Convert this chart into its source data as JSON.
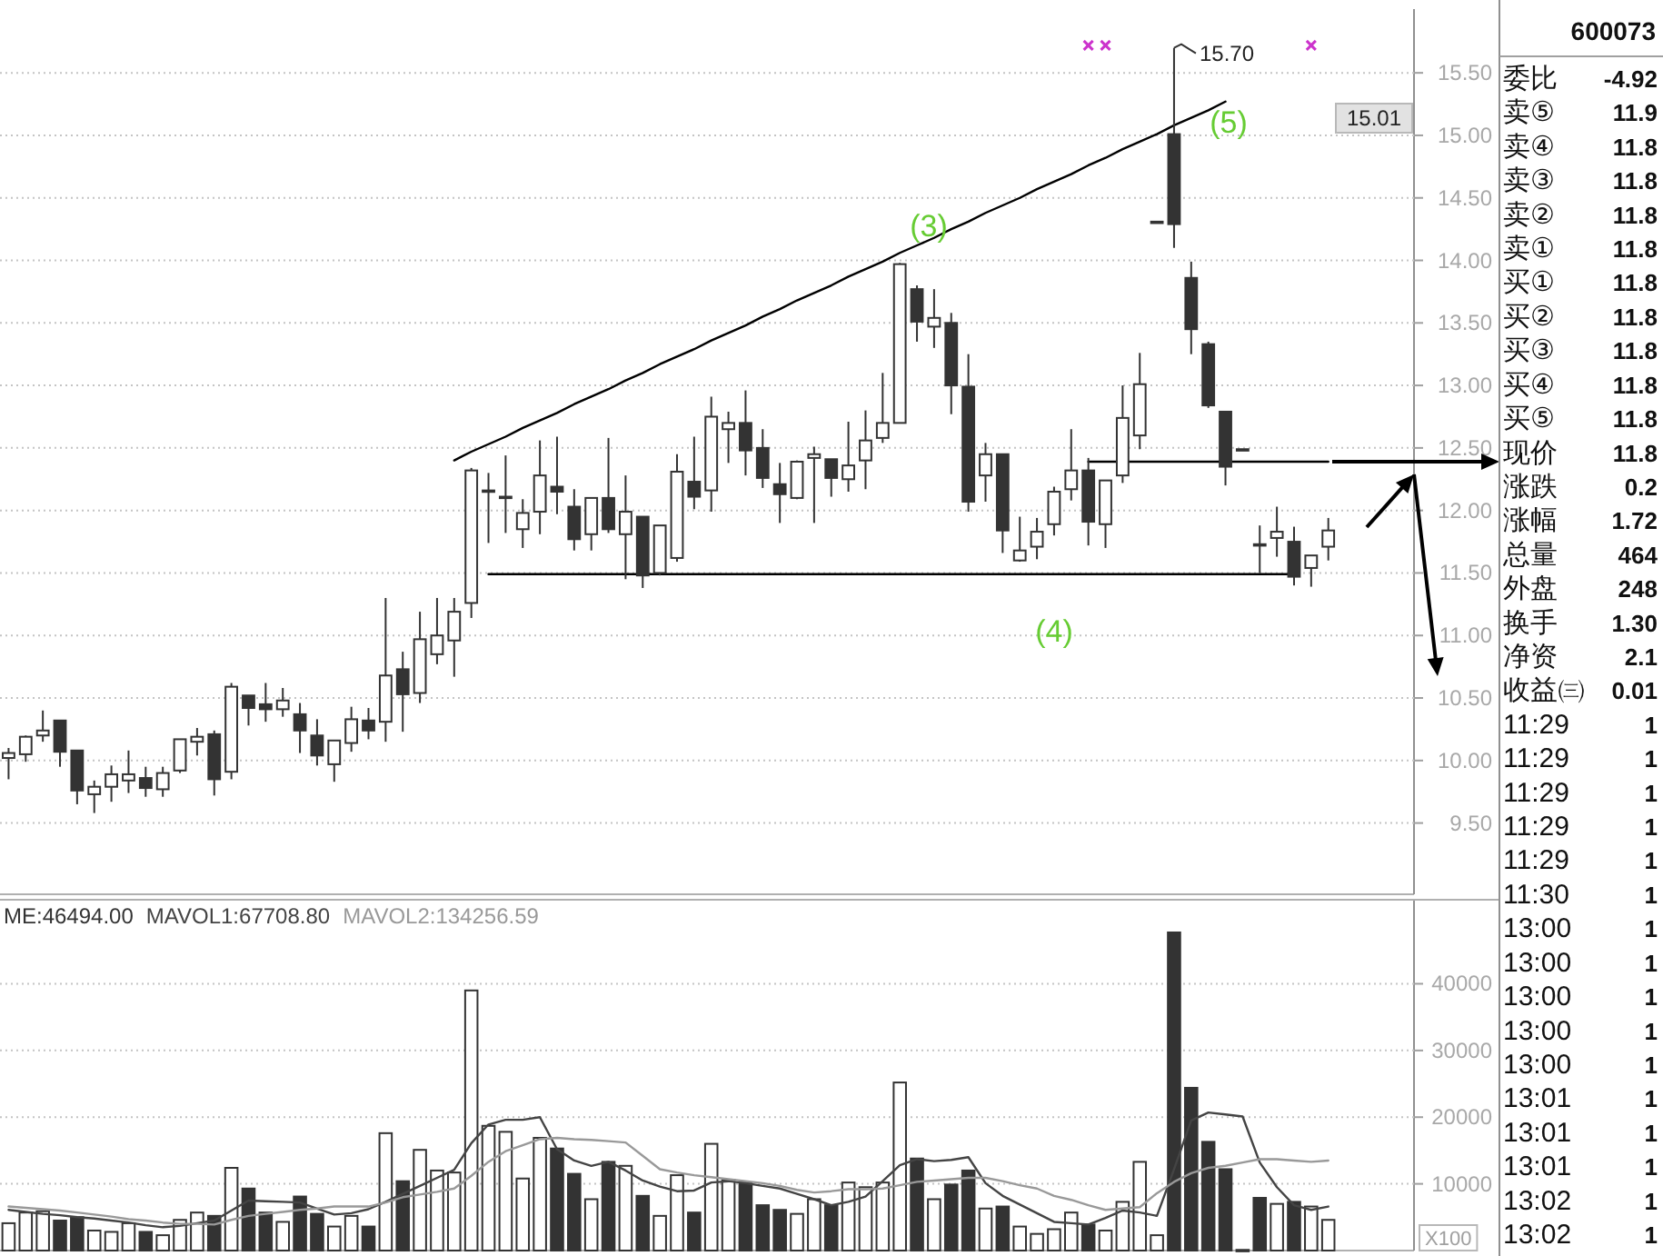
{
  "chart_data": [
    {
      "type": "candlestick",
      "categories": [
        null,
        null,
        null,
        null,
        null,
        null,
        null,
        null,
        null,
        null,
        null,
        null,
        null,
        null,
        null,
        null,
        null,
        null,
        null,
        null,
        null,
        null,
        null,
        null,
        null,
        null,
        null,
        null,
        null,
        null,
        null,
        null,
        null,
        null,
        null,
        null,
        null,
        null,
        null,
        null,
        null,
        null,
        null,
        null,
        null,
        null,
        null,
        null,
        null,
        null,
        null,
        null,
        null,
        null,
        null,
        null,
        null,
        null,
        null,
        null,
        null,
        null,
        null,
        null,
        null,
        null,
        null,
        null,
        null,
        null,
        null,
        null,
        null,
        null,
        null,
        null,
        null,
        null
      ],
      "color": "#333333",
      "ohlc": [
        [
          10.02,
          10.1,
          9.85,
          10.06
        ],
        [
          10.05,
          10.2,
          9.99,
          10.19
        ],
        [
          10.2,
          10.4,
          10.15,
          10.24
        ],
        [
          10.32,
          10.32,
          9.95,
          10.07
        ],
        [
          10.08,
          10.08,
          9.65,
          9.76
        ],
        [
          9.73,
          9.84,
          9.58,
          9.79
        ],
        [
          9.79,
          9.96,
          9.67,
          9.89
        ],
        [
          9.84,
          10.08,
          9.74,
          9.89
        ],
        [
          9.86,
          9.95,
          9.71,
          9.78
        ],
        [
          9.77,
          9.95,
          9.71,
          9.9
        ],
        [
          9.92,
          10.17,
          9.9,
          10.17
        ],
        [
          10.15,
          10.26,
          10.04,
          10.19
        ],
        [
          10.21,
          10.24,
          9.72,
          9.85
        ],
        [
          9.91,
          10.62,
          9.85,
          10.59
        ],
        [
          10.52,
          10.52,
          10.28,
          10.42
        ],
        [
          10.45,
          10.62,
          10.31,
          10.41
        ],
        [
          10.41,
          10.58,
          10.35,
          10.48
        ],
        [
          10.37,
          10.46,
          10.06,
          10.24
        ],
        [
          10.2,
          10.33,
          9.96,
          10.04
        ],
        [
          9.97,
          10.16,
          9.83,
          10.16
        ],
        [
          10.14,
          10.43,
          10.07,
          10.33
        ],
        [
          10.32,
          10.42,
          10.17,
          10.24
        ],
        [
          10.31,
          11.3,
          10.15,
          10.68
        ],
        [
          10.73,
          10.87,
          10.23,
          10.53
        ],
        [
          10.54,
          11.19,
          10.46,
          10.97
        ],
        [
          10.85,
          11.3,
          10.77,
          11.0
        ],
        [
          10.96,
          11.3,
          10.67,
          11.19
        ],
        [
          11.26,
          12.34,
          11.14,
          12.32
        ],
        [
          12.15,
          12.3,
          11.74,
          12.16
        ],
        [
          12.1,
          12.44,
          11.82,
          12.11
        ],
        [
          11.85,
          12.09,
          11.7,
          11.98
        ],
        [
          11.99,
          12.56,
          11.81,
          12.28
        ],
        [
          12.19,
          12.59,
          11.97,
          12.15
        ],
        [
          12.03,
          12.17,
          11.68,
          11.77
        ],
        [
          11.81,
          12.1,
          11.68,
          12.1
        ],
        [
          12.1,
          12.58,
          11.82,
          11.85
        ],
        [
          11.81,
          12.28,
          11.45,
          11.99
        ],
        [
          11.95,
          11.95,
          11.38,
          11.48
        ],
        [
          11.5,
          11.88,
          11.48,
          11.88
        ],
        [
          11.62,
          12.45,
          11.59,
          12.31
        ],
        [
          12.23,
          12.59,
          12.01,
          12.11
        ],
        [
          12.16,
          12.91,
          11.99,
          12.75
        ],
        [
          12.65,
          12.79,
          12.38,
          12.7
        ],
        [
          12.7,
          12.96,
          12.28,
          12.48
        ],
        [
          12.5,
          12.65,
          12.18,
          12.26
        ],
        [
          12.21,
          12.38,
          11.9,
          12.13
        ],
        [
          12.1,
          12.4,
          12.09,
          12.39
        ],
        [
          12.42,
          12.51,
          11.9,
          12.45
        ],
        [
          12.41,
          12.41,
          12.11,
          12.26
        ],
        [
          12.25,
          12.71,
          12.15,
          12.36
        ],
        [
          12.4,
          12.8,
          12.17,
          12.56
        ],
        [
          12.58,
          13.1,
          12.54,
          12.7
        ],
        [
          12.7,
          13.98,
          12.7,
          13.97
        ],
        [
          13.77,
          13.8,
          13.35,
          13.51
        ],
        [
          13.47,
          13.77,
          13.3,
          13.54
        ],
        [
          13.5,
          13.58,
          12.77,
          13.0
        ],
        [
          12.99,
          13.25,
          11.99,
          12.07
        ],
        [
          12.28,
          12.54,
          12.07,
          12.45
        ],
        [
          12.45,
          12.45,
          11.66,
          11.84
        ],
        [
          11.6,
          11.95,
          11.59,
          11.68
        ],
        [
          11.71,
          11.94,
          11.61,
          11.83
        ],
        [
          11.89,
          12.19,
          11.8,
          12.15
        ],
        [
          12.17,
          12.65,
          12.08,
          12.32
        ],
        [
          12.32,
          12.42,
          11.72,
          11.91
        ],
        [
          11.89,
          12.24,
          11.7,
          12.24
        ],
        [
          12.28,
          13.0,
          12.22,
          12.74
        ],
        [
          12.6,
          13.26,
          12.49,
          13.01
        ],
        [
          14.31,
          14.31,
          14.31,
          14.31
        ],
        [
          15.01,
          15.7,
          14.1,
          14.29
        ],
        [
          13.86,
          13.99,
          13.25,
          13.45
        ],
        [
          13.33,
          13.35,
          12.82,
          12.84
        ],
        [
          12.79,
          12.79,
          12.2,
          12.35
        ],
        [
          12.49,
          12.49,
          12.49,
          12.49
        ],
        [
          11.73,
          11.88,
          11.5,
          11.72
        ],
        [
          11.78,
          12.03,
          11.63,
          11.83
        ],
        [
          11.75,
          11.87,
          11.4,
          11.47
        ],
        [
          11.54,
          11.64,
          11.39,
          11.64
        ],
        [
          11.71,
          11.94,
          11.6,
          11.84
        ]
      ],
      "value_labels": [
        null,
        null,
        null,
        null,
        null,
        null,
        null,
        null,
        null,
        null,
        null,
        null,
        null,
        null,
        null,
        null,
        null,
        null,
        null,
        null,
        null,
        null,
        null,
        null,
        null,
        null,
        null,
        null,
        null,
        null,
        null,
        null,
        null,
        null,
        null,
        null,
        null,
        null,
        null,
        null,
        null,
        null,
        null,
        null,
        null,
        null,
        null,
        null,
        null,
        null,
        null,
        null,
        null,
        null,
        null,
        null,
        null,
        null,
        null,
        null,
        null,
        null,
        null,
        null,
        null,
        null,
        null,
        null,
        "15.70",
        null,
        null,
        null,
        null,
        null,
        null,
        null,
        null,
        null
      ],
      "series": [
        {
          "type": "line",
          "color": "#000000",
          "values": [
            null,
            null,
            null,
            null,
            null,
            null,
            null,
            null,
            null,
            null,
            null,
            null,
            null,
            null,
            null,
            null,
            null,
            null,
            null,
            null,
            null,
            null,
            null,
            null,
            null,
            null,
            12.4,
            12.47,
            12.53,
            12.59,
            12.66,
            12.72,
            12.78,
            12.85,
            12.91,
            12.97,
            13.04,
            13.1,
            13.17,
            13.23,
            13.29,
            13.36,
            13.42,
            13.48,
            13.55,
            13.61,
            13.68,
            13.74,
            13.8,
            13.87,
            13.93,
            13.99,
            14.06,
            14.12,
            14.18,
            14.25,
            14.31,
            14.38,
            14.44,
            14.5,
            14.57,
            14.63,
            14.69,
            14.76,
            14.82,
            14.89,
            14.95,
            15.01,
            15.08,
            15.14,
            15.2,
            15.27,
            null,
            null,
            null,
            null,
            null,
            null
          ]
        },
        {
          "type": "line",
          "color": "#000000",
          "values": [
            null,
            null,
            null,
            null,
            null,
            null,
            null,
            null,
            null,
            null,
            null,
            null,
            null,
            null,
            null,
            null,
            null,
            null,
            null,
            null,
            null,
            null,
            null,
            null,
            null,
            null,
            null,
            null,
            11.49,
            11.49,
            11.49,
            11.49,
            11.49,
            11.49,
            11.49,
            11.49,
            11.49,
            11.49,
            11.49,
            11.49,
            11.49,
            11.49,
            11.49,
            11.49,
            11.49,
            11.49,
            11.49,
            11.49,
            11.49,
            11.49,
            11.49,
            11.49,
            11.49,
            11.49,
            11.49,
            11.49,
            11.49,
            11.49,
            11.49,
            11.49,
            11.49,
            11.49,
            11.49,
            11.49,
            11.49,
            11.49,
            11.49,
            11.49,
            11.49,
            11.49,
            11.49,
            11.49,
            11.49,
            11.49,
            11.49,
            11.49,
            null,
            null
          ]
        },
        {
          "type": "line",
          "color": "#000000",
          "values": [
            null,
            null,
            null,
            null,
            null,
            null,
            null,
            null,
            null,
            null,
            null,
            null,
            null,
            null,
            null,
            null,
            null,
            null,
            null,
            null,
            null,
            null,
            null,
            null,
            null,
            null,
            null,
            null,
            null,
            null,
            null,
            null,
            null,
            null,
            null,
            null,
            null,
            null,
            null,
            null,
            null,
            null,
            null,
            null,
            null,
            null,
            null,
            null,
            null,
            null,
            null,
            null,
            null,
            null,
            null,
            null,
            null,
            null,
            null,
            null,
            null,
            null,
            null,
            12.39,
            12.39,
            12.39,
            12.39,
            12.39,
            12.39,
            12.39,
            12.39,
            12.39,
            12.39,
            12.39,
            12.39,
            12.39,
            12.39,
            12.39
          ]
        },
        {
          "type": "scatter",
          "color": "#cc33cc",
          "marker": "cross",
          "values": [
            null,
            null,
            null,
            null,
            null,
            null,
            null,
            null,
            null,
            null,
            null,
            null,
            null,
            null,
            null,
            null,
            null,
            null,
            null,
            null,
            null,
            null,
            null,
            null,
            null,
            null,
            null,
            null,
            null,
            null,
            null,
            null,
            null,
            null,
            null,
            null,
            null,
            null,
            null,
            null,
            null,
            null,
            null,
            null,
            null,
            null,
            null,
            null,
            null,
            null,
            null,
            null,
            null,
            null,
            null,
            null,
            null,
            null,
            null,
            null,
            null,
            null,
            null,
            15.72,
            15.72,
            null,
            null,
            null,
            null,
            null,
            null,
            null,
            null,
            null,
            null,
            null,
            15.72,
            null
          ]
        }
      ],
      "ylim": [
        8.93,
        16.01
      ],
      "yticks": [
        {
          "value": 9.5,
          "label": "9.50"
        },
        {
          "value": 10,
          "label": "10.00"
        },
        {
          "value": 10.5,
          "label": "10.50"
        },
        {
          "value": 11,
          "label": "11.00"
        },
        {
          "value": 11.5,
          "label": "11.50"
        },
        {
          "value": 12,
          "label": "12.00"
        },
        {
          "value": 12.5,
          "label": "12.50"
        },
        {
          "value": 13,
          "label": "13.00"
        },
        {
          "value": 13.5,
          "label": "13.50"
        },
        {
          "value": 14,
          "label": "14.00"
        },
        {
          "value": 14.5,
          "label": "14.50"
        },
        {
          "value": 15,
          "label": "15.00"
        },
        {
          "value": 15.5,
          "label": "15.50"
        }
      ],
      "grid": "y",
      "annotations": [
        "(3)",
        "(4)",
        "(5)",
        "15.01"
      ]
    },
    {
      "type": "bar",
      "categories": [
        null,
        null,
        null,
        null,
        null,
        null,
        null,
        null,
        null,
        null,
        null,
        null,
        null,
        null,
        null,
        null,
        null,
        null,
        null,
        null,
        null,
        null,
        null,
        null,
        null,
        null,
        null,
        null,
        null,
        null,
        null,
        null,
        null,
        null,
        null,
        null,
        null,
        null,
        null,
        null,
        null,
        null,
        null,
        null,
        null,
        null,
        null,
        null,
        null,
        null,
        null,
        null,
        null,
        null,
        null,
        null,
        null,
        null,
        null,
        null,
        null,
        null,
        null,
        null,
        null,
        null,
        null,
        null,
        null,
        null,
        null,
        null,
        null,
        null,
        null,
        null,
        null,
        null
      ],
      "series": [
        {
          "name": "ME:46494.00",
          "type": "bar",
          "color": "#333333",
          "colors": [
            "#ffffff",
            "#ffffff",
            "#ffffff",
            "#333333",
            "#333333",
            "#ffffff",
            "#ffffff",
            "#ffffff",
            "#333333",
            "#ffffff",
            "#ffffff",
            "#ffffff",
            "#333333",
            "#ffffff",
            "#333333",
            "#333333",
            "#ffffff",
            "#333333",
            "#333333",
            "#ffffff",
            "#ffffff",
            "#333333",
            "#ffffff",
            "#333333",
            "#ffffff",
            "#ffffff",
            "#ffffff",
            "#ffffff",
            "#ffffff",
            "#ffffff",
            "#ffffff",
            "#ffffff",
            "#333333",
            "#333333",
            "#ffffff",
            "#333333",
            "#ffffff",
            "#333333",
            "#ffffff",
            "#ffffff",
            "#333333",
            "#ffffff",
            "#ffffff",
            "#333333",
            "#333333",
            "#333333",
            "#ffffff",
            "#ffffff",
            "#333333",
            "#ffffff",
            "#ffffff",
            "#ffffff",
            "#ffffff",
            "#333333",
            "#ffffff",
            "#333333",
            "#333333",
            "#ffffff",
            "#333333",
            "#ffffff",
            "#ffffff",
            "#ffffff",
            "#ffffff",
            "#333333",
            "#ffffff",
            "#ffffff",
            "#ffffff",
            "#ffffff",
            "#333333",
            "#333333",
            "#333333",
            "#333333",
            "#333333",
            "#333333",
            "#ffffff",
            "#333333",
            "#ffffff",
            "#ffffff"
          ],
          "values": [
            4100,
            5700,
            5900,
            4500,
            5000,
            3000,
            2800,
            4100,
            2800,
            2300,
            4600,
            5700,
            5200,
            12400,
            9300,
            5700,
            4300,
            8100,
            5500,
            3600,
            5200,
            3600,
            17600,
            10400,
            15100,
            12000,
            11700,
            39000,
            18700,
            17800,
            10800,
            16900,
            15300,
            11500,
            7700,
            13300,
            12700,
            8200,
            5200,
            11300,
            5700,
            16000,
            10600,
            10200,
            6800,
            6100,
            5500,
            7700,
            6800,
            10200,
            9500,
            10200,
            25200,
            13800,
            7700,
            9900,
            12000,
            6300,
            6600,
            3600,
            2500,
            3200,
            5700,
            3900,
            3000,
            7300,
            13300,
            2300,
            47700,
            24400,
            16300,
            12200,
            100,
            7900,
            7000,
            7300,
            6600,
            4600
          ]
        },
        {
          "name": "MAVOL1:67708.80",
          "type": "line",
          "color": "#444444",
          "values": [
            6100,
            5800,
            5500,
            5300,
            5000,
            4800,
            4500,
            4200,
            3800,
            3500,
            3700,
            4100,
            4500,
            6000,
            7500,
            7400,
            7300,
            7200,
            6300,
            5400,
            5600,
            6200,
            7300,
            8500,
            9700,
            10900,
            12100,
            16100,
            18900,
            19600,
            19600,
            20000,
            15200,
            13500,
            12700,
            13300,
            12000,
            10500,
            9600,
            8900,
            9000,
            10200,
            10400,
            10100,
            9700,
            9300,
            8500,
            7700,
            6800,
            7300,
            8100,
            10400,
            12800,
            13700,
            13400,
            13600,
            14000,
            10100,
            8200,
            6900,
            5600,
            4300,
            4100,
            3900,
            4900,
            6000,
            5700,
            5200,
            12200,
            19500,
            20700,
            20400,
            20100,
            13200,
            9500,
            6800,
            6100,
            6600
          ]
        },
        {
          "name": "MAVOL2:134256.59",
          "type": "line",
          "color": "#999999",
          "values": [
            6600,
            6400,
            6200,
            6000,
            5700,
            5400,
            5100,
            4700,
            4500,
            4200,
            4000,
            4000,
            3900,
            4600,
            5200,
            5500,
            5800,
            6100,
            6300,
            6600,
            6600,
            6600,
            7200,
            8000,
            8400,
            8800,
            9300,
            11200,
            13300,
            14900,
            15800,
            16700,
            16900,
            16700,
            16600,
            16400,
            16200,
            14200,
            12200,
            11700,
            11300,
            11000,
            10700,
            10400,
            10100,
            9700,
            9100,
            8700,
            8900,
            9200,
            9200,
            9300,
            9800,
            10300,
            10500,
            10700,
            10900,
            10900,
            10400,
            9800,
            9300,
            8200,
            7600,
            6800,
            6100,
            6300,
            6500,
            8600,
            10300,
            11600,
            12400,
            12700,
            13200,
            13700,
            13700,
            13500,
            13300,
            13500
          ]
        }
      ],
      "ylim": [
        0,
        52600
      ],
      "yticks": [
        10000,
        20000,
        30000,
        40000
      ],
      "grid": "y",
      "ylabel": "X100"
    },
    {
      "type": "other",
      "title": "600073",
      "categories": [
        "委比",
        "卖⑤",
        "卖④",
        "卖③",
        "卖②",
        "卖①",
        "买①",
        "买②",
        "买③",
        "买④",
        "买⑤",
        "现价",
        "涨跌",
        "涨幅",
        "总量",
        "外盘",
        "换手",
        "净资",
        "收益㈢",
        "11:29",
        "11:29",
        "11:29",
        "11:29",
        "11:29",
        "11:30",
        "13:00",
        "13:00",
        "13:00",
        "13:00",
        "13:00",
        "13:01",
        "13:01",
        "13:01",
        "13:02",
        "13:02"
      ],
      "value_labels": [
        "-4.92",
        "11.9",
        "11.8",
        "11.8",
        "11.8",
        "11.8",
        "11.8",
        "11.8",
        "11.8",
        "11.8",
        "11.8",
        "11.8",
        "0.2",
        "1.72",
        "464",
        "248",
        "1.30",
        "2.1",
        "0.01",
        "1",
        "1",
        "1",
        "1",
        "1",
        "1",
        "1",
        "1",
        "1",
        "1",
        "1",
        "1",
        "1",
        "1",
        "1",
        "1"
      ]
    }
  ]
}
